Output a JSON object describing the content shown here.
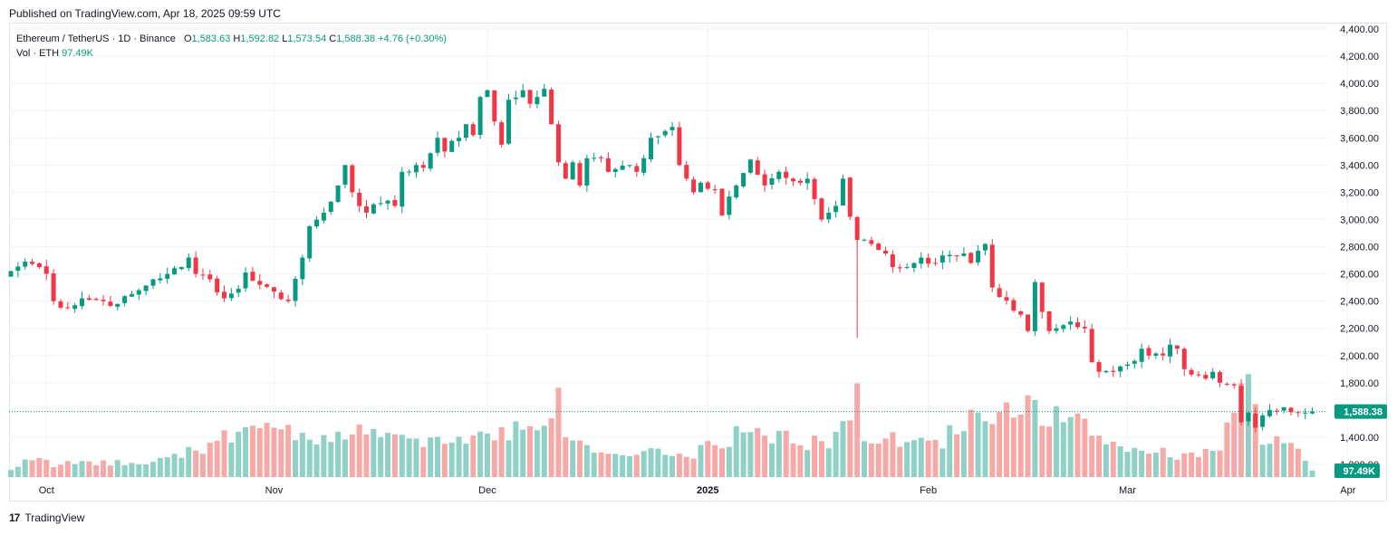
{
  "header": {
    "published": "Published on TradingView.com, Apr 18, 2025 09:59 UTC"
  },
  "legend": {
    "symbol": "Ethereum / TetherUS · 1D · Binance",
    "o_label": "O",
    "o_value": "1,583.63",
    "h_label": "H",
    "h_value": "1,592.82",
    "l_label": "L",
    "l_value": "1,573.54",
    "c_label": "C",
    "c_value": "1,588.38",
    "change": "+4.76 (+0.30%)",
    "vol_label": "Vol · ETH",
    "vol_value": "97.49K"
  },
  "footer": {
    "brand": "TradingView",
    "logo_mark": "17"
  },
  "colors": {
    "up": "#089981",
    "down": "#f23645",
    "vol_up": "#8fd1c7",
    "vol_down": "#f7a9a7",
    "grid": "#f0f3fa",
    "last": "#089981"
  },
  "chart_data": {
    "type": "candlestick",
    "title": "Ethereum / TetherUS · 1D · Binance",
    "y_axis": {
      "min": 1200,
      "max": 4400,
      "ticks": [
        "4,400.00",
        "4,200.00",
        "4,000.00",
        "3,800.00",
        "3,600.00",
        "3,400.00",
        "3,200.00",
        "3,000.00",
        "2,800.00",
        "2,600.00",
        "2,400.00",
        "2,200.00",
        "2,000.00",
        "1,800.00",
        "1,400.00",
        "1,200.00"
      ],
      "tick_values": [
        4400,
        4200,
        4000,
        3800,
        3600,
        3400,
        3200,
        3000,
        2800,
        2600,
        2400,
        2200,
        2000,
        1800,
        1400,
        1200
      ]
    },
    "x_axis": {
      "labels": [
        "Oct",
        "Nov",
        "Dec",
        "2025",
        "Feb",
        "Mar",
        "Apr"
      ],
      "label_bar_index": [
        5,
        37,
        67,
        98,
        129,
        157,
        188
      ],
      "bold": [
        false,
        false,
        false,
        true,
        false,
        false,
        false
      ]
    },
    "last_price": {
      "value": 1588.38,
      "label": "1,588.38"
    },
    "last_volume": {
      "label": "97.49K"
    },
    "anchors": [
      [
        0,
        2620
      ],
      [
        2,
        2690
      ],
      [
        4,
        2650
      ],
      [
        5,
        2600
      ],
      [
        6,
        2400
      ],
      [
        8,
        2350
      ],
      [
        10,
        2420
      ],
      [
        13,
        2400
      ],
      [
        15,
        2380
      ],
      [
        18,
        2480
      ],
      [
        20,
        2560
      ],
      [
        22,
        2600
      ],
      [
        24,
        2650
      ],
      [
        25,
        2720
      ],
      [
        26,
        2600
      ],
      [
        28,
        2560
      ],
      [
        30,
        2420
      ],
      [
        32,
        2490
      ],
      [
        33,
        2610
      ],
      [
        35,
        2520
      ],
      [
        37,
        2470
      ],
      [
        39,
        2400
      ],
      [
        41,
        2720
      ],
      [
        42,
        2950
      ],
      [
        44,
        3050
      ],
      [
        46,
        3250
      ],
      [
        47,
        3400
      ],
      [
        48,
        3200
      ],
      [
        50,
        3050
      ],
      [
        52,
        3120
      ],
      [
        54,
        3100
      ],
      [
        55,
        3350
      ],
      [
        57,
        3400
      ],
      [
        58,
        3380
      ],
      [
        60,
        3600
      ],
      [
        61,
        3500
      ],
      [
        63,
        3600
      ],
      [
        64,
        3700
      ],
      [
        65,
        3620
      ],
      [
        66,
        3900
      ],
      [
        67,
        3950
      ],
      [
        68,
        3720
      ],
      [
        69,
        3550
      ],
      [
        70,
        3880
      ],
      [
        72,
        3950
      ],
      [
        73,
        3850
      ],
      [
        75,
        3960
      ],
      [
        76,
        3700
      ],
      [
        77,
        3420
      ],
      [
        78,
        3300
      ],
      [
        79,
        3420
      ],
      [
        80,
        3250
      ],
      [
        81,
        3450
      ],
      [
        83,
        3450
      ],
      [
        84,
        3350
      ],
      [
        85,
        3370
      ],
      [
        87,
        3400
      ],
      [
        88,
        3350
      ],
      [
        89,
        3450
      ],
      [
        90,
        3600
      ],
      [
        92,
        3650
      ],
      [
        93,
        3680
      ],
      [
        94,
        3400
      ],
      [
        95,
        3300
      ],
      [
        96,
        3200
      ],
      [
        97,
        3270
      ],
      [
        99,
        3220
      ],
      [
        100,
        3030
      ],
      [
        102,
        3250
      ],
      [
        104,
        3440
      ],
      [
        106,
        3250
      ],
      [
        108,
        3350
      ],
      [
        110,
        3280
      ],
      [
        112,
        3300
      ],
      [
        113,
        3150
      ],
      [
        114,
        3000
      ],
      [
        115,
        3050
      ],
      [
        116,
        3100
      ],
      [
        117,
        3300
      ],
      [
        118,
        3020
      ],
      [
        119,
        2850
      ],
      [
        121,
        2820
      ],
      [
        123,
        2750
      ],
      [
        124,
        2650
      ],
      [
        126,
        2650
      ],
      [
        127,
        2680
      ],
      [
        128,
        2720
      ],
      [
        130,
        2680
      ],
      [
        132,
        2740
      ],
      [
        134,
        2750
      ],
      [
        135,
        2680
      ],
      [
        136,
        2770
      ],
      [
        137,
        2820
      ],
      [
        138,
        2500
      ],
      [
        139,
        2430
      ],
      [
        141,
        2330
      ],
      [
        142,
        2300
      ],
      [
        143,
        2180
      ],
      [
        144,
        2540
      ],
      [
        145,
        2320
      ],
      [
        146,
        2180
      ],
      [
        147,
        2200
      ],
      [
        149,
        2250
      ],
      [
        151,
        2200
      ],
      [
        152,
        1950
      ],
      [
        153,
        1880
      ],
      [
        155,
        1880
      ],
      [
        156,
        1920
      ],
      [
        158,
        1960
      ],
      [
        159,
        2050
      ],
      [
        160,
        2000
      ],
      [
        162,
        2000
      ],
      [
        163,
        2080
      ],
      [
        164,
        2050
      ],
      [
        165,
        1900
      ],
      [
        166,
        1860
      ],
      [
        168,
        1830
      ],
      [
        169,
        1880
      ],
      [
        170,
        1800
      ],
      [
        171,
        1790
      ],
      [
        172,
        1780
      ],
      [
        173,
        1510
      ],
      [
        174,
        1580
      ],
      [
        175,
        1470
      ],
      [
        176,
        1560
      ],
      [
        177,
        1600
      ],
      [
        179,
        1620
      ],
      [
        181,
        1580
      ],
      [
        183,
        1588.38
      ]
    ],
    "volume_anchors": [
      [
        0,
        0.07
      ],
      [
        3,
        0.18
      ],
      [
        6,
        0.12
      ],
      [
        20,
        0.15
      ],
      [
        24,
        0.2
      ],
      [
        25,
        0.3
      ],
      [
        27,
        0.22
      ],
      [
        30,
        0.36
      ],
      [
        32,
        0.45
      ],
      [
        35,
        0.55
      ],
      [
        38,
        0.42
      ],
      [
        42,
        0.4
      ],
      [
        45,
        0.38
      ],
      [
        50,
        0.42
      ],
      [
        55,
        0.38
      ],
      [
        58,
        0.3
      ],
      [
        62,
        0.35
      ],
      [
        66,
        0.4
      ],
      [
        70,
        0.45
      ],
      [
        75,
        0.55
      ],
      [
        77,
        0.7
      ],
      [
        78,
        0.45
      ],
      [
        80,
        0.3
      ],
      [
        85,
        0.2
      ],
      [
        90,
        0.25
      ],
      [
        95,
        0.18
      ],
      [
        100,
        0.35
      ],
      [
        105,
        0.45
      ],
      [
        110,
        0.35
      ],
      [
        115,
        0.3
      ],
      [
        118,
        0.55
      ],
      [
        119,
        1.0
      ],
      [
        120,
        0.4
      ],
      [
        124,
        0.35
      ],
      [
        130,
        0.3
      ],
      [
        136,
        0.6
      ],
      [
        140,
        0.7
      ],
      [
        145,
        0.6
      ],
      [
        150,
        0.5
      ],
      [
        155,
        0.3
      ],
      [
        160,
        0.25
      ],
      [
        165,
        0.2
      ],
      [
        170,
        0.3
      ],
      [
        172,
        0.55
      ],
      [
        174,
        0.9
      ],
      [
        176,
        0.35
      ],
      [
        180,
        0.3
      ],
      [
        183,
        0.07
      ]
    ]
  }
}
